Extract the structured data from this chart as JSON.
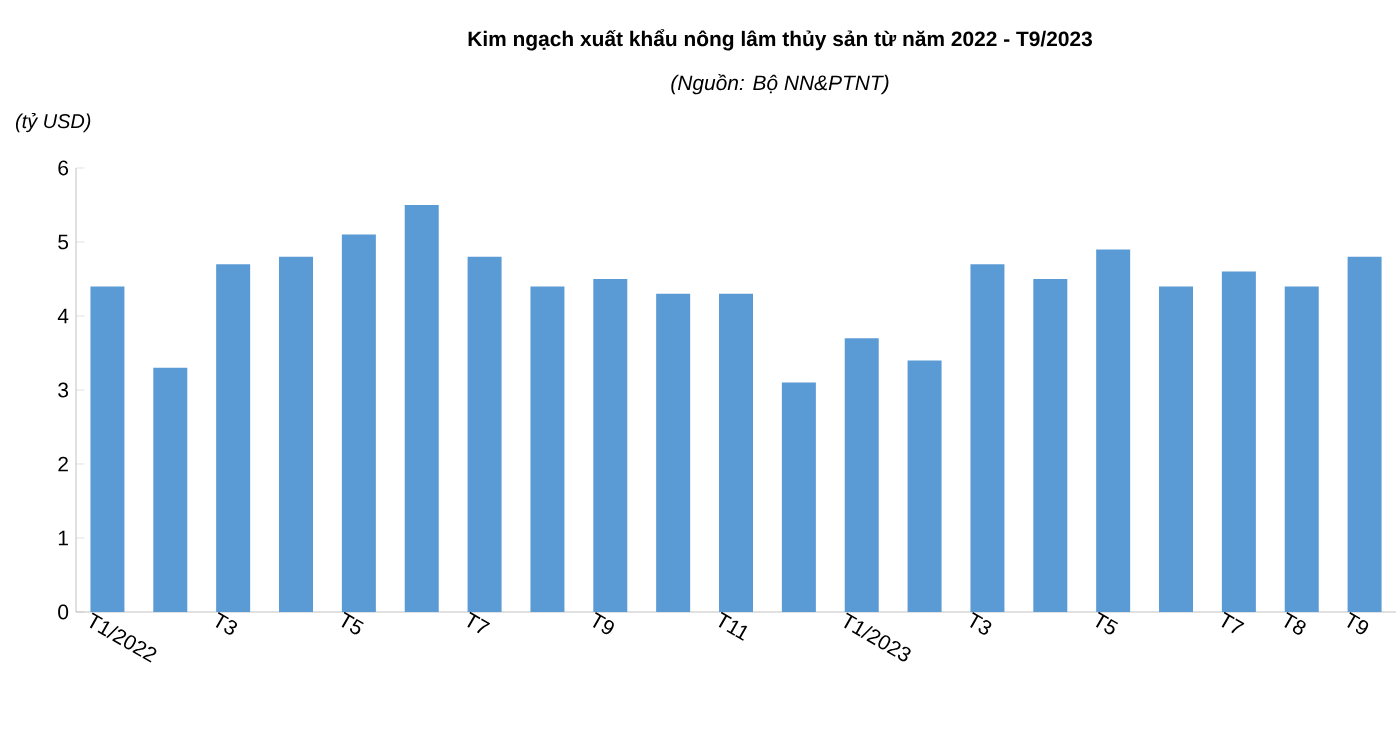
{
  "chart_data": {
    "type": "bar",
    "title": "Kim ngạch xuất khẩu nông lâm thủy sản từ năm 2022 - T9/2023",
    "subtitle": "(Nguồn: Bộ NN&PTNT)",
    "ylabel": "(tỷ USD)",
    "categories": [
      "T1/2022",
      null,
      "T3",
      null,
      "T5",
      null,
      "T7",
      null,
      "T9",
      null,
      "T11",
      null,
      "T1/2023",
      null,
      "T3",
      null,
      "T5",
      null,
      "T7",
      "T8",
      "T9"
    ],
    "values": [
      4.4,
      3.3,
      4.7,
      4.8,
      5.1,
      5.5,
      4.8,
      4.4,
      4.5,
      4.3,
      4.3,
      3.1,
      3.7,
      3.4,
      4.7,
      4.5,
      4.9,
      4.4,
      4.6,
      4.4,
      4.8
    ],
    "color": "#5b9bd5",
    "ylim": [
      0,
      6
    ],
    "yticks": [
      0,
      1,
      2,
      3,
      4,
      5,
      6
    ],
    "grid": false
  }
}
